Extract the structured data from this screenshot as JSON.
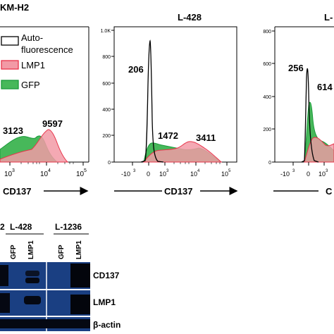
{
  "panel_a": {
    "legend": {
      "autofluorescence_line1": "Auto-",
      "autofluorescence_line2": "fluorescence",
      "lmp1": "LMP1",
      "gfp": "GFP",
      "colors": {
        "autofluorescence": "#000000",
        "lmp1": "#e8334a",
        "lmp1_fill": "#f29aa6",
        "gfp": "#1a9a3a",
        "gfp_fill": "#47b85a"
      }
    },
    "plots": [
      {
        "title": "KM-H2",
        "xlabel": "CD137",
        "x_ticks": [
          "10",
          "3",
          "10",
          "4",
          "10",
          "5"
        ],
        "annotations": [
          "3123",
          "9597"
        ]
      },
      {
        "title": "L-428",
        "xlabel": "CD137",
        "y_ticks": [
          "1.0K",
          "800",
          "600",
          "400",
          "200",
          "0"
        ],
        "x_ticks": [
          "-10",
          "3",
          "0",
          "10",
          "3",
          "10",
          "4",
          "10",
          "5"
        ],
        "annotations": [
          "206",
          "1472",
          "3411"
        ]
      },
      {
        "title": "L-",
        "xlabel": "C",
        "y_ticks": [
          "800",
          "600",
          "400",
          "200",
          "0"
        ],
        "x_ticks": [
          "-10",
          "3",
          "0",
          "10",
          "3"
        ],
        "annotations": [
          "256",
          "614"
        ]
      }
    ]
  },
  "panel_b": {
    "cell_lines": [
      "2",
      "L-428",
      "L-1236"
    ],
    "lanes": [
      "GFP",
      "LMP1",
      "GFP",
      "LMP1"
    ],
    "bands": [
      "CD137",
      "LMP1",
      "β-actin"
    ]
  }
}
